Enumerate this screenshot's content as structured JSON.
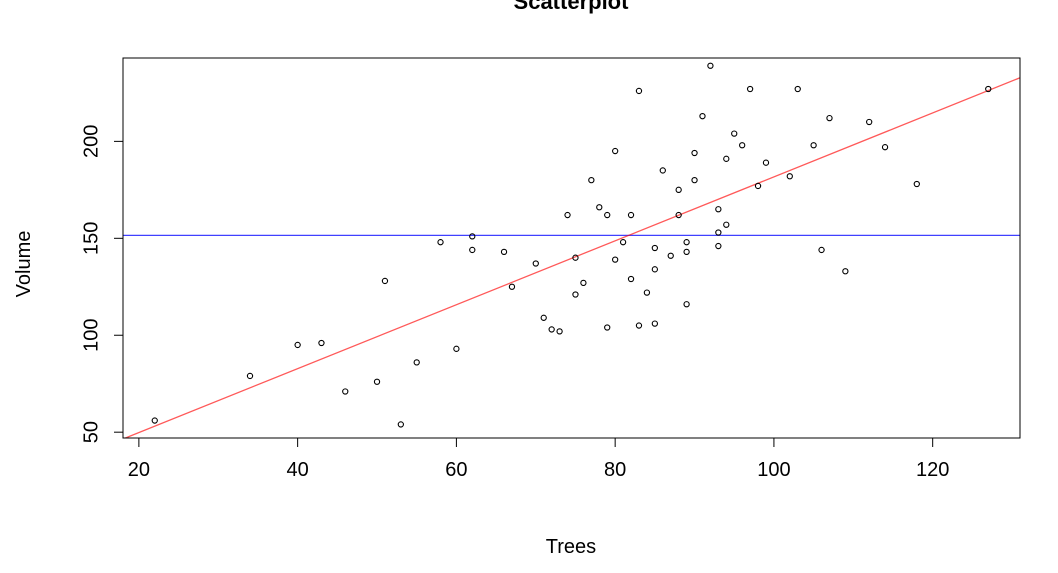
{
  "chart_data": {
    "type": "scatter",
    "title": "Scatterplot",
    "xlabel": "Trees",
    "ylabel": "Volume",
    "xlim": [
      18,
      131
    ],
    "ylim": [
      47,
      243
    ],
    "xticks": [
      20,
      40,
      60,
      80,
      100,
      120
    ],
    "yticks": [
      50,
      100,
      150,
      200
    ],
    "grid": false,
    "colors": {
      "points": "#000000",
      "regression_line": "#ff0000",
      "mean_line": "#0000ff"
    },
    "series": [
      {
        "x": [
          22,
          34,
          40,
          43,
          46,
          50,
          51,
          53,
          55,
          58,
          60,
          62,
          62,
          66,
          67,
          70,
          71,
          72,
          73,
          74,
          75,
          75,
          76,
          77,
          78,
          79,
          79,
          80,
          80,
          81,
          82,
          82,
          83,
          83,
          84,
          85,
          85,
          85,
          86,
          87,
          88,
          88,
          89,
          89,
          89,
          90,
          90,
          91,
          92,
          93,
          93,
          93,
          94,
          94,
          95,
          96,
          97,
          98,
          99,
          102,
          103,
          105,
          106,
          107,
          109,
          112,
          114,
          118,
          127
        ],
        "y": [
          56,
          79,
          95,
          96,
          71,
          76,
          128,
          54,
          86,
          148,
          93,
          151,
          144,
          143,
          125,
          137,
          109,
          103,
          102,
          162,
          121,
          140,
          127,
          180,
          166,
          104,
          162,
          195,
          139,
          148,
          162,
          129,
          226,
          105,
          122,
          145,
          106,
          134,
          185,
          141,
          175,
          162,
          148,
          143,
          116,
          194,
          180,
          213,
          239,
          165,
          153,
          146,
          191,
          157,
          204,
          198,
          227,
          177,
          189,
          182,
          227,
          198,
          144,
          212,
          133,
          210,
          197,
          178,
          227
        ]
      }
    ],
    "mean_line": {
      "y": 151.5
    },
    "regression_line": {
      "x": [
        18,
        131
      ],
      "y": [
        46.5,
        232.8
      ]
    }
  }
}
